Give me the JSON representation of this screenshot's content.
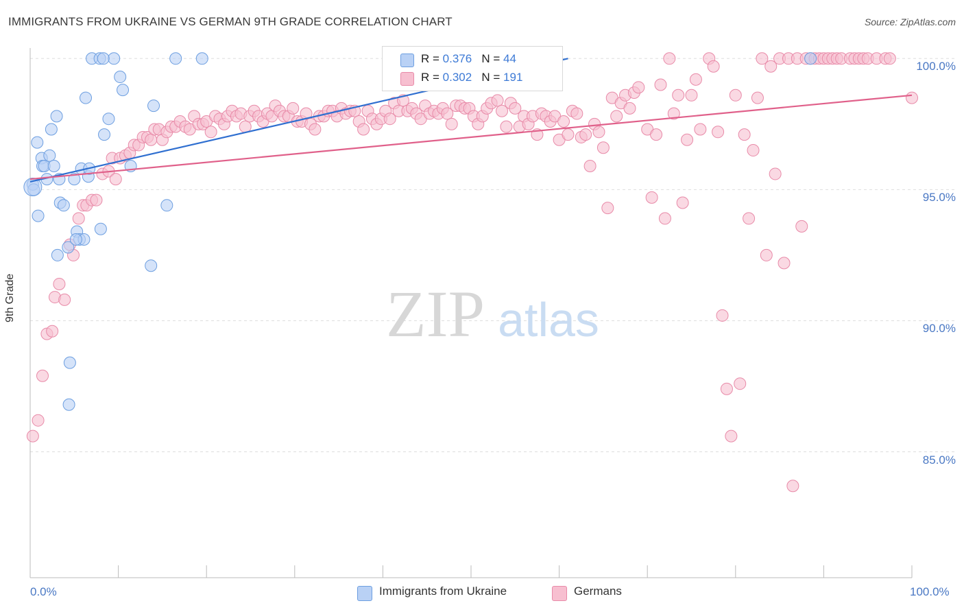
{
  "header": {
    "title": "IMMIGRANTS FROM UKRAINE VS GERMAN 9TH GRADE CORRELATION CHART",
    "source": "Source: ZipAtlas.com"
  },
  "watermark": {
    "zip": "ZIP",
    "atlas": "atlas"
  },
  "colors": {
    "ukraine_fill": "#b9d1f5",
    "ukraine_stroke": "#6c9ee0",
    "ukraine_line": "#2f6fd0",
    "german_fill": "#f7bfd0",
    "german_stroke": "#e88aa8",
    "german_line": "#e0608a",
    "grid": "#dddddd",
    "axis_label": "#4a78c4"
  },
  "legend": {
    "rows": [
      {
        "r_label": "R = ",
        "r_value": "0.376",
        "n_label": "N = ",
        "n_value": "44"
      },
      {
        "r_label": "R = ",
        "r_value": "0.302",
        "n_label": "N = ",
        "n_value": "191"
      }
    ]
  },
  "bottom_legend": [
    "Immigrants from Ukraine",
    "Germans"
  ],
  "chart_data": {
    "type": "scatter",
    "title": "IMMIGRANTS FROM UKRAINE VS GERMAN 9TH GRADE CORRELATION CHART",
    "xlabel": "",
    "ylabel": "9th Grade",
    "x_tick_labels": [
      "0.0%",
      "100.0%"
    ],
    "y_tick_labels": [
      "100.0%",
      "95.0%",
      "90.0%",
      "85.0%"
    ],
    "xlim": [
      0,
      100
    ],
    "ylim": [
      80.2,
      100.4
    ],
    "y_gridlines": [
      100,
      95,
      90,
      85
    ],
    "series": [
      {
        "name": "Immigrants from Ukraine",
        "r": 0.376,
        "n": 44,
        "trend": {
          "x": [
            0,
            61
          ],
          "y": [
            95.3,
            100.0
          ]
        },
        "points": [
          [
            0.3,
            95.2
          ],
          [
            0.4,
            95.0
          ],
          [
            0.8,
            96.8
          ],
          [
            0.9,
            94.0
          ],
          [
            1.3,
            96.2
          ],
          [
            1.4,
            95.9
          ],
          [
            1.6,
            95.9
          ],
          [
            2.2,
            96.3
          ],
          [
            2.4,
            97.3
          ],
          [
            2.7,
            95.9
          ],
          [
            1.9,
            95.4
          ],
          [
            3.0,
            97.8
          ],
          [
            3.3,
            95.4
          ],
          [
            3.4,
            94.5
          ],
          [
            3.8,
            94.4
          ],
          [
            4.3,
            92.8
          ],
          [
            5.0,
            95.4
          ],
          [
            5.3,
            93.4
          ],
          [
            5.6,
            93.1
          ],
          [
            5.8,
            95.8
          ],
          [
            6.1,
            93.1
          ],
          [
            6.3,
            98.5
          ],
          [
            6.6,
            95.5
          ],
          [
            6.7,
            95.8
          ],
          [
            7.0,
            100.0
          ],
          [
            7.9,
            100.0
          ],
          [
            8.0,
            93.5
          ],
          [
            8.4,
            97.1
          ],
          [
            8.9,
            97.7
          ],
          [
            9.5,
            100.0
          ],
          [
            10.2,
            99.3
          ],
          [
            10.5,
            98.8
          ],
          [
            11.4,
            95.9
          ],
          [
            13.7,
            92.1
          ],
          [
            14.0,
            98.2
          ],
          [
            15.5,
            94.4
          ],
          [
            16.5,
            100.0
          ],
          [
            19.5,
            100.0
          ],
          [
            3.1,
            92.5
          ],
          [
            4.5,
            88.4
          ],
          [
            4.4,
            86.8
          ],
          [
            88.5,
            100.0
          ],
          [
            8.3,
            100.0
          ],
          [
            5.2,
            93.1
          ]
        ]
      },
      {
        "name": "Germans",
        "r": 0.302,
        "n": 191,
        "trend": {
          "x": [
            0,
            100
          ],
          "y": [
            95.4,
            98.6
          ]
        },
        "points": [
          [
            0.3,
            85.6
          ],
          [
            0.9,
            86.2
          ],
          [
            1.4,
            87.9
          ],
          [
            1.9,
            89.5
          ],
          [
            2.5,
            89.6
          ],
          [
            2.8,
            90.9
          ],
          [
            3.3,
            91.4
          ],
          [
            3.9,
            90.8
          ],
          [
            4.5,
            92.9
          ],
          [
            4.9,
            92.5
          ],
          [
            5.5,
            93.9
          ],
          [
            6.0,
            94.4
          ],
          [
            6.4,
            94.4
          ],
          [
            7.0,
            94.6
          ],
          [
            7.5,
            94.6
          ],
          [
            8.2,
            95.6
          ],
          [
            8.9,
            95.7
          ],
          [
            9.3,
            96.2
          ],
          [
            9.7,
            95.4
          ],
          [
            10.2,
            96.2
          ],
          [
            10.8,
            96.3
          ],
          [
            11.3,
            96.4
          ],
          [
            11.8,
            96.7
          ],
          [
            12.3,
            96.7
          ],
          [
            12.8,
            97.0
          ],
          [
            13.3,
            97.0
          ],
          [
            13.7,
            96.9
          ],
          [
            14.1,
            97.3
          ],
          [
            14.6,
            97.3
          ],
          [
            15.0,
            96.9
          ],
          [
            15.5,
            97.2
          ],
          [
            16.0,
            97.4
          ],
          [
            16.5,
            97.4
          ],
          [
            17.0,
            97.6
          ],
          [
            17.6,
            97.4
          ],
          [
            18.1,
            97.3
          ],
          [
            18.6,
            97.8
          ],
          [
            19.1,
            97.5
          ],
          [
            19.6,
            97.5
          ],
          [
            20.0,
            97.6
          ],
          [
            20.5,
            97.2
          ],
          [
            21.0,
            97.8
          ],
          [
            21.5,
            97.7
          ],
          [
            22.0,
            97.5
          ],
          [
            22.4,
            97.8
          ],
          [
            22.9,
            98.0
          ],
          [
            23.4,
            97.8
          ],
          [
            23.9,
            97.9
          ],
          [
            24.4,
            97.4
          ],
          [
            24.9,
            97.8
          ],
          [
            25.4,
            98.0
          ],
          [
            25.9,
            97.8
          ],
          [
            26.4,
            97.6
          ],
          [
            26.9,
            97.9
          ],
          [
            27.4,
            97.8
          ],
          [
            27.8,
            98.2
          ],
          [
            28.3,
            98.0
          ],
          [
            28.8,
            97.8
          ],
          [
            29.3,
            97.8
          ],
          [
            29.8,
            98.1
          ],
          [
            30.3,
            97.6
          ],
          [
            30.8,
            97.6
          ],
          [
            31.3,
            97.9
          ],
          [
            31.8,
            97.5
          ],
          [
            32.3,
            97.3
          ],
          [
            32.8,
            97.8
          ],
          [
            33.3,
            97.8
          ],
          [
            33.8,
            98.0
          ],
          [
            34.3,
            98.0
          ],
          [
            34.8,
            97.8
          ],
          [
            35.3,
            98.1
          ],
          [
            35.8,
            97.9
          ],
          [
            36.3,
            98.0
          ],
          [
            36.8,
            98.0
          ],
          [
            37.3,
            97.6
          ],
          [
            37.8,
            97.3
          ],
          [
            38.3,
            98.0
          ],
          [
            38.8,
            97.7
          ],
          [
            39.3,
            97.5
          ],
          [
            39.8,
            97.7
          ],
          [
            40.3,
            98.0
          ],
          [
            40.8,
            97.7
          ],
          [
            41.3,
            98.3
          ],
          [
            41.8,
            98.0
          ],
          [
            42.3,
            98.4
          ],
          [
            42.8,
            98.0
          ],
          [
            43.3,
            98.1
          ],
          [
            43.8,
            97.9
          ],
          [
            44.3,
            97.7
          ],
          [
            44.8,
            98.2
          ],
          [
            45.3,
            97.9
          ],
          [
            45.8,
            98.0
          ],
          [
            46.3,
            97.9
          ],
          [
            46.8,
            98.1
          ],
          [
            47.3,
            97.9
          ],
          [
            47.8,
            97.5
          ],
          [
            48.3,
            98.2
          ],
          [
            48.8,
            98.2
          ],
          [
            49.3,
            98.1
          ],
          [
            49.8,
            98.1
          ],
          [
            50.3,
            97.8
          ],
          [
            50.8,
            97.5
          ],
          [
            51.3,
            97.8
          ],
          [
            51.8,
            98.1
          ],
          [
            52.3,
            98.3
          ],
          [
            53.0,
            98.4
          ],
          [
            53.5,
            98.0
          ],
          [
            54.0,
            97.4
          ],
          [
            54.5,
            98.3
          ],
          [
            55.0,
            98.1
          ],
          [
            55.5,
            97.4
          ],
          [
            56.0,
            97.8
          ],
          [
            56.5,
            97.5
          ],
          [
            57.0,
            97.8
          ],
          [
            57.5,
            97.1
          ],
          [
            58.0,
            97.9
          ],
          [
            58.5,
            97.8
          ],
          [
            59.0,
            97.6
          ],
          [
            59.5,
            97.8
          ],
          [
            60.0,
            96.9
          ],
          [
            60.5,
            97.6
          ],
          [
            61.0,
            97.1
          ],
          [
            61.5,
            98.0
          ],
          [
            62.0,
            97.9
          ],
          [
            62.5,
            97.0
          ],
          [
            63.0,
            97.1
          ],
          [
            63.5,
            95.9
          ],
          [
            64.0,
            97.5
          ],
          [
            64.5,
            97.2
          ],
          [
            65.0,
            96.6
          ],
          [
            65.5,
            94.3
          ],
          [
            66.0,
            98.5
          ],
          [
            66.5,
            97.8
          ],
          [
            67.0,
            98.3
          ],
          [
            67.5,
            98.6
          ],
          [
            68.0,
            98.1
          ],
          [
            68.5,
            98.7
          ],
          [
            69.0,
            98.9
          ],
          [
            70.0,
            97.3
          ],
          [
            70.5,
            94.7
          ],
          [
            71.0,
            97.1
          ],
          [
            71.5,
            99.0
          ],
          [
            72.0,
            93.9
          ],
          [
            72.5,
            100.0
          ],
          [
            73.0,
            97.9
          ],
          [
            73.5,
            98.6
          ],
          [
            74.0,
            94.5
          ],
          [
            74.5,
            96.9
          ],
          [
            75.0,
            98.6
          ],
          [
            75.5,
            99.2
          ],
          [
            76.0,
            97.3
          ],
          [
            77.0,
            100.0
          ],
          [
            77.5,
            99.7
          ],
          [
            78.0,
            97.2
          ],
          [
            79.0,
            87.4
          ],
          [
            78.5,
            90.2
          ],
          [
            79.5,
            85.6
          ],
          [
            80.0,
            98.6
          ],
          [
            80.5,
            87.6
          ],
          [
            81.0,
            97.1
          ],
          [
            81.5,
            93.9
          ],
          [
            82.0,
            96.5
          ],
          [
            82.5,
            98.5
          ],
          [
            83.0,
            100.0
          ],
          [
            83.5,
            92.5
          ],
          [
            84.0,
            99.7
          ],
          [
            84.5,
            95.6
          ],
          [
            85.0,
            100.0
          ],
          [
            85.5,
            92.2
          ],
          [
            86.0,
            100.0
          ],
          [
            86.5,
            83.7
          ],
          [
            87.0,
            100.0
          ],
          [
            87.5,
            93.6
          ],
          [
            88.0,
            100.0
          ],
          [
            88.5,
            100.0
          ],
          [
            89.0,
            100.0
          ],
          [
            89.5,
            100.0
          ],
          [
            90.0,
            100.0
          ],
          [
            90.5,
            100.0
          ],
          [
            91.0,
            100.0
          ],
          [
            91.5,
            100.0
          ],
          [
            92.0,
            100.0
          ],
          [
            93.0,
            100.0
          ],
          [
            93.5,
            100.0
          ],
          [
            94.0,
            100.0
          ],
          [
            94.5,
            100.0
          ],
          [
            95.0,
            100.0
          ],
          [
            96.0,
            100.0
          ],
          [
            97.0,
            100.0
          ],
          [
            97.5,
            100.0
          ],
          [
            100.0,
            98.5
          ]
        ]
      }
    ]
  }
}
